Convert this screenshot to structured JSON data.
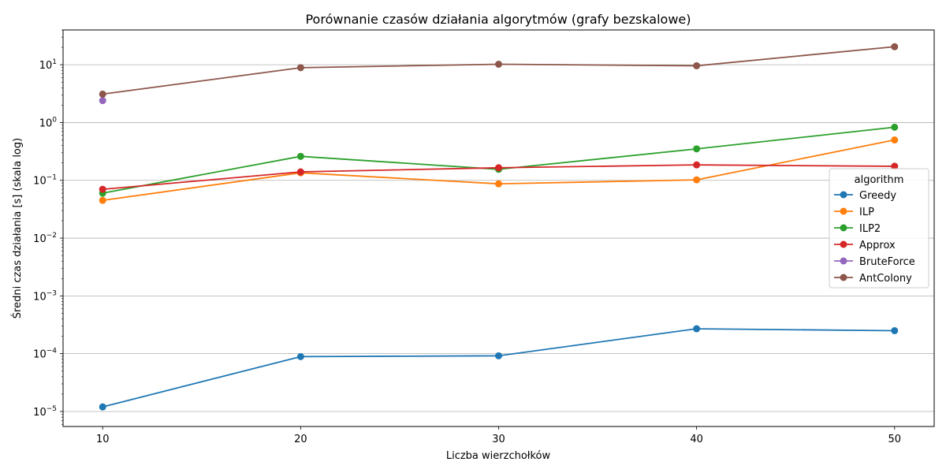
{
  "chart_data": {
    "type": "line",
    "title": "Porównanie czasów działania algorytmów (grafy bezskalowe)",
    "xlabel": "Liczba wierzchołków",
    "ylabel": "Średni czas działania [s] (skala log)",
    "yscale": "log",
    "xlim": [
      8,
      52
    ],
    "ylim": [
      5.5e-06,
      40
    ],
    "x_ticks": [
      10,
      20,
      30,
      40,
      50
    ],
    "x_tick_labels": [
      "10",
      "20",
      "30",
      "40",
      "50"
    ],
    "y_ticks": [
      1e-05,
      0.0001,
      0.001,
      0.01,
      0.1,
      1,
      10
    ],
    "y_tick_labels": [
      {
        "base": "10",
        "exp": "−5"
      },
      {
        "base": "10",
        "exp": "−4"
      },
      {
        "base": "10",
        "exp": "−3"
      },
      {
        "base": "10",
        "exp": "−2"
      },
      {
        "base": "10",
        "exp": "−1"
      },
      {
        "base": "10",
        "exp": "0"
      },
      {
        "base": "10",
        "exp": "1"
      }
    ],
    "grid": "horizontal",
    "legend": {
      "title": "algorithm",
      "position": "right"
    },
    "series": [
      {
        "name": "Greedy",
        "color": "#1f77b4",
        "x": [
          10,
          20,
          30,
          40,
          50
        ],
        "values": [
          1.2e-05,
          8.9e-05,
          9.2e-05,
          0.00027,
          0.00025
        ]
      },
      {
        "name": "ILP",
        "color": "#ff7f0e",
        "x": [
          10,
          20,
          30,
          40,
          50
        ],
        "values": [
          0.045,
          0.135,
          0.087,
          0.102,
          0.5
        ]
      },
      {
        "name": "ILP2",
        "color": "#2ca02c",
        "x": [
          10,
          20,
          30,
          40,
          50
        ],
        "values": [
          0.06,
          0.26,
          0.155,
          0.35,
          0.83
        ]
      },
      {
        "name": "Approx",
        "color": "#d62728",
        "x": [
          10,
          20,
          30,
          40,
          50
        ],
        "values": [
          0.07,
          0.14,
          0.165,
          0.185,
          0.175
        ]
      },
      {
        "name": "BruteForce",
        "color": "#9467bd",
        "x": [
          10
        ],
        "values": [
          2.4
        ]
      },
      {
        "name": "AntColony",
        "color": "#8c564b",
        "x": [
          10,
          20,
          30,
          40,
          50
        ],
        "values": [
          3.1,
          8.9,
          10.2,
          9.6,
          20.5
        ]
      }
    ]
  }
}
